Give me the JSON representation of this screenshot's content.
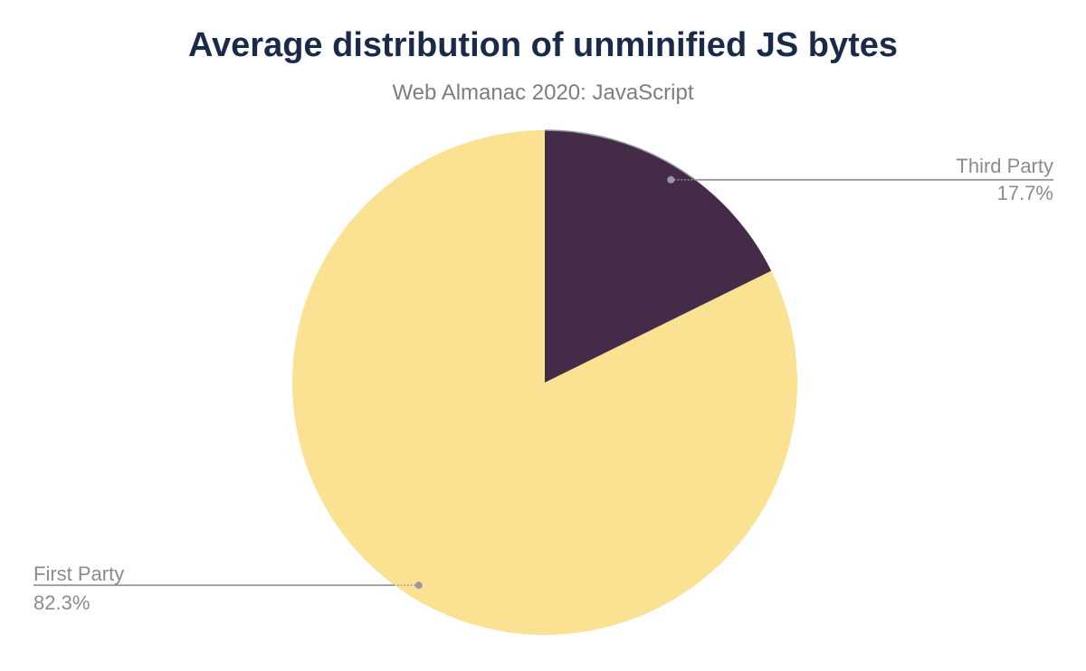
{
  "chart_data": {
    "type": "pie",
    "title": "Average distribution of unminified JS bytes",
    "subtitle": "Web Almanac 2020: JavaScript",
    "unit": "percent",
    "direction": "clockwise",
    "start_angle_deg": 0,
    "legend_position": "outside-leader-labels",
    "slices": [
      {
        "label": "Third Party",
        "value": 17.7,
        "display": "17.7%",
        "color": "#442C49"
      },
      {
        "label": "First Party",
        "value": 82.3,
        "display": "82.3%",
        "color": "#FBE192"
      }
    ],
    "colors": {
      "title": "#1A2B49",
      "subtitle": "#7E7E7E",
      "label": "#8B8B90",
      "leader_line": "#98989E"
    }
  }
}
